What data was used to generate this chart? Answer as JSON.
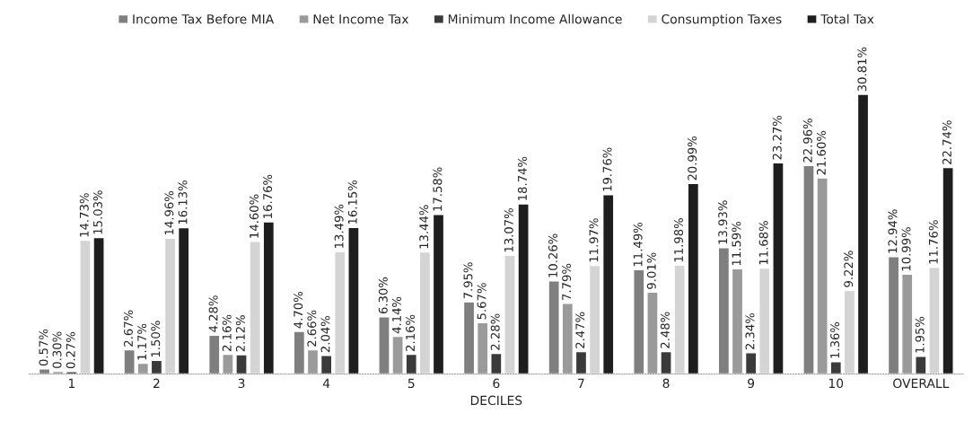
{
  "chart_data": {
    "type": "bar",
    "xlabel": "DECILES",
    "categories": [
      "1",
      "2",
      "3",
      "4",
      "5",
      "6",
      "7",
      "8",
      "9",
      "10",
      "OVERALL"
    ],
    "legend": "top",
    "grid": false,
    "series": [
      {
        "name": "Income Tax Before MIA",
        "color": "#7f7f7f",
        "values": [
          0.57,
          2.67,
          4.28,
          4.7,
          6.3,
          7.95,
          10.26,
          11.49,
          13.93,
          22.96,
          12.94
        ],
        "value_labels": [
          "0.57%",
          "2.67%",
          "4.28%",
          "4.70%",
          "6.30%",
          "7.95%",
          "10.26%",
          "11.49%",
          "13.93%",
          "22.96%",
          "12.94%"
        ]
      },
      {
        "name": "Net Income Tax",
        "color": "#9a9a9a",
        "values": [
          0.3,
          1.17,
          2.16,
          2.66,
          4.14,
          5.67,
          7.79,
          9.01,
          11.59,
          21.6,
          10.99
        ],
        "value_labels": [
          "0.30%",
          "1.17%",
          "2.16%",
          "2.66%",
          "4.14%",
          "5.67%",
          "7.79%",
          "9.01%",
          "11.59%",
          "21.60%",
          "10.99%"
        ]
      },
      {
        "name": "Minimum Income Allowance",
        "color": "#3a3a3a",
        "values": [
          0.27,
          1.5,
          2.12,
          2.04,
          2.16,
          2.28,
          2.47,
          2.48,
          2.34,
          1.36,
          1.95
        ],
        "value_labels": [
          "0.27%",
          "1.50%",
          "2.12%",
          "2.04%",
          "2.16%",
          "2.28%",
          "2.47%",
          "2.48%",
          "2.34%",
          "1.36%",
          "1.95%"
        ]
      },
      {
        "name": "Consumption Taxes",
        "color": "#d4d4d4",
        "values": [
          14.73,
          14.96,
          14.6,
          13.49,
          13.44,
          13.07,
          11.97,
          11.98,
          11.68,
          9.22,
          11.76
        ],
        "value_labels": [
          "14.73%",
          "14.96%",
          "14.60%",
          "13.49%",
          "13.44%",
          "13.07%",
          "11.97%",
          "11.98%",
          "11.68%",
          "9.22%",
          "11.76%"
        ]
      },
      {
        "name": "Total Tax",
        "color": "#1e1e1e",
        "values": [
          15.03,
          16.13,
          16.76,
          16.15,
          17.58,
          18.74,
          19.76,
          20.99,
          23.27,
          30.81,
          22.74
        ],
        "value_labels": [
          "15.03%",
          "16.13%",
          "16.76%",
          "16.15%",
          "17.58%",
          "18.74%",
          "19.76%",
          "20.99%",
          "23.27%",
          "30.81%",
          "22.74%"
        ]
      }
    ]
  }
}
